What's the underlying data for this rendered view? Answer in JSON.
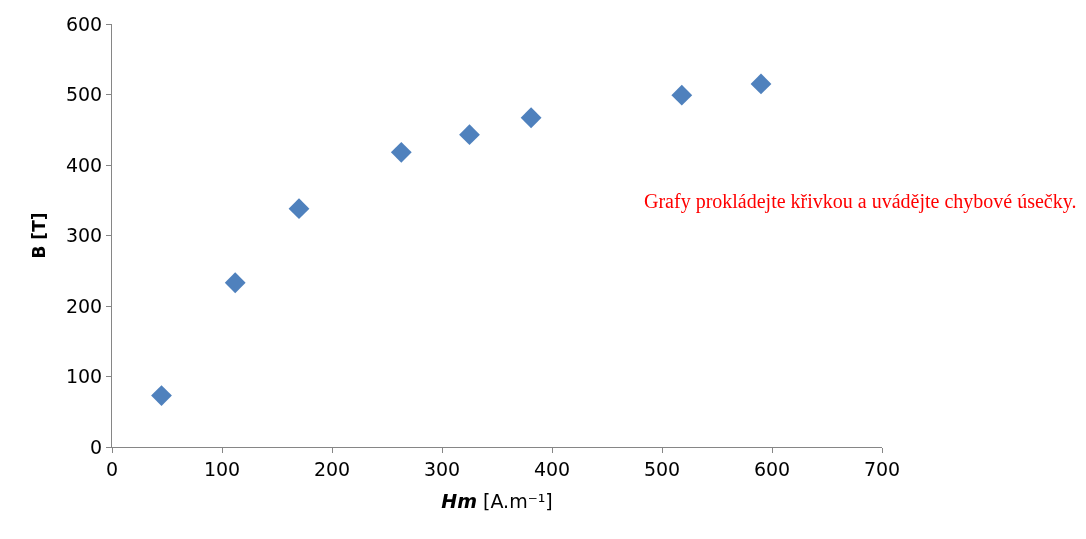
{
  "chart_data": {
    "type": "scatter",
    "xlabel": "Hm [A.m⁻¹]",
    "ylabel": "B [T]",
    "x": [
      45,
      112,
      170,
      263,
      325,
      381,
      518,
      590
    ],
    "series": [
      {
        "color": "#4f81bd",
        "values": [
          73,
          233,
          338,
          418,
          443,
          467,
          499,
          515
        ]
      }
    ],
    "xlim": [
      0,
      700
    ],
    "xticks": [
      0,
      100,
      200,
      300,
      400,
      500,
      600,
      700
    ],
    "ylim": [
      0,
      600
    ],
    "yticks": [
      0,
      100,
      200,
      300,
      400,
      500,
      600
    ],
    "grid": false,
    "legend": false,
    "marker": "diamond",
    "annotations": [
      "Grafy prokládejte křivkou a uvádějte chybové úsečky."
    ]
  }
}
